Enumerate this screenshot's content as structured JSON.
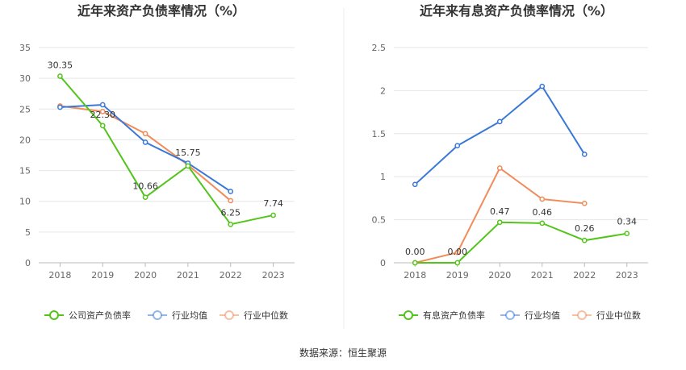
{
  "chart_data": [
    {
      "type": "line",
      "title": "近年来资产负债率情况（%）",
      "categories": [
        "2018",
        "2019",
        "2020",
        "2021",
        "2022",
        "2023"
      ],
      "ylim": [
        0,
        35
      ],
      "yticks": [
        "0",
        "5",
        "10",
        "15",
        "20",
        "25",
        "30",
        "35"
      ],
      "grid": true,
      "legend_position": "bottom",
      "series": [
        {
          "name": "公司资产负债率",
          "color": "#52c41a",
          "values": [
            30.35,
            22.3,
            10.66,
            15.75,
            6.25,
            7.74
          ],
          "labels": [
            "30.35",
            "22.30",
            "10.66",
            "15.75",
            "6.25",
            "7.74"
          ]
        },
        {
          "name": "行业均值",
          "color": "#3a78d8",
          "values": [
            25.3,
            25.7,
            19.6,
            16.2,
            11.6,
            null
          ],
          "labels": []
        },
        {
          "name": "行业中位数",
          "color": "#f08c5a",
          "values": [
            25.5,
            24.6,
            21.0,
            15.9,
            10.1,
            null
          ],
          "labels": []
        }
      ]
    },
    {
      "type": "line",
      "title": "近年来有息资产负债率情况（%）",
      "categories": [
        "2018",
        "2019",
        "2020",
        "2021",
        "2022",
        "2023"
      ],
      "ylim": [
        0,
        2.5
      ],
      "yticks": [
        "0",
        "0.5",
        "1",
        "1.5",
        "2",
        "2.5"
      ],
      "grid": true,
      "legend_position": "bottom",
      "series": [
        {
          "name": "有息资产负债率",
          "color": "#52c41a",
          "values": [
            0.0,
            0.0,
            0.47,
            0.46,
            0.26,
            0.34
          ],
          "labels": [
            "0.00",
            "0.00",
            "0.47",
            "0.46",
            "0.26",
            "0.34"
          ]
        },
        {
          "name": "行业均值",
          "color": "#3a78d8",
          "values": [
            0.91,
            1.36,
            1.64,
            2.05,
            1.26,
            null
          ],
          "labels": []
        },
        {
          "name": "行业中位数",
          "color": "#f08c5a",
          "values": [
            0.0,
            0.12,
            1.1,
            0.74,
            0.69,
            null
          ],
          "labels": []
        }
      ]
    }
  ],
  "footer": {
    "source": "数据来源：恒生聚源"
  }
}
